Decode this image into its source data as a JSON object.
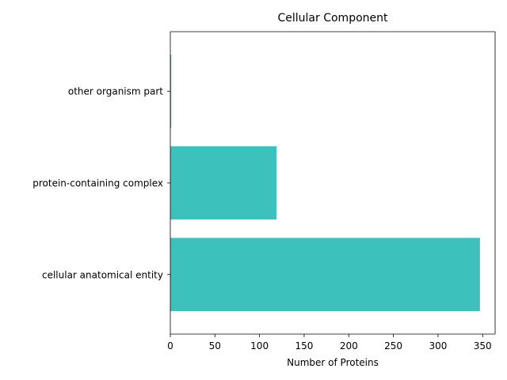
{
  "chart_data": {
    "type": "bar",
    "orientation": "horizontal",
    "title": "Cellular Component",
    "xlabel": "Number of Proteins",
    "ylabel": "",
    "categories": [
      "cellular anatomical entity",
      "protein-containing complex",
      "other organism part"
    ],
    "values": [
      347,
      119,
      1
    ],
    "xlim": [
      0,
      364
    ],
    "xticks": [
      0,
      50,
      100,
      150,
      200,
      250,
      300,
      350
    ],
    "grid": false,
    "legend": "none",
    "bar_color": "#3cc1bc"
  }
}
